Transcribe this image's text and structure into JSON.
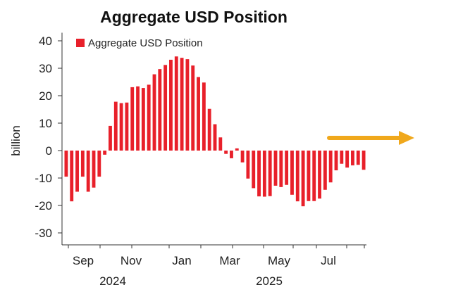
{
  "chart_data": {
    "type": "bar",
    "title": "Aggregate USD Position",
    "ylabel": "billion",
    "xlabel": "",
    "ylim": [
      -35,
      45
    ],
    "yticks": [
      40,
      30,
      20,
      10,
      0,
      -10,
      -20,
      -30
    ],
    "legend": {
      "label": "Aggregate USD Position",
      "placement": "top-left"
    },
    "month_labels": [
      "Sep",
      "Nov",
      "Jan",
      "Mar",
      "May",
      "Jul"
    ],
    "year_labels": [
      "2024",
      "2025"
    ],
    "series": [
      {
        "name": "Aggregate USD Position",
        "color": "#e8202a",
        "values": [
          -9.5,
          -18.5,
          -15,
          -9.5,
          -15,
          -13.5,
          -9.5,
          -1.5,
          9,
          17.8,
          17.3,
          17.5,
          23.1,
          23.4,
          22.8,
          24,
          27.8,
          29.7,
          31.2,
          33.1,
          34.3,
          33.8,
          33.3,
          31,
          26.8,
          24.8,
          15.2,
          9.6,
          4.8,
          -1.2,
          -2.8,
          0.8,
          -4.3,
          -10.2,
          -13.7,
          -16.7,
          -16.8,
          -16.6,
          -12.8,
          -13.3,
          -12.5,
          -16.1,
          -18.5,
          -20.3,
          -18.4,
          -18.4,
          -17.5,
          -14.3,
          -11.6,
          -7.2,
          -4.8,
          -6.2,
          -5.4,
          -5.2,
          -7
        ]
      }
    ],
    "arrow": {
      "color": "#f0a81c",
      "direction": "right"
    }
  }
}
